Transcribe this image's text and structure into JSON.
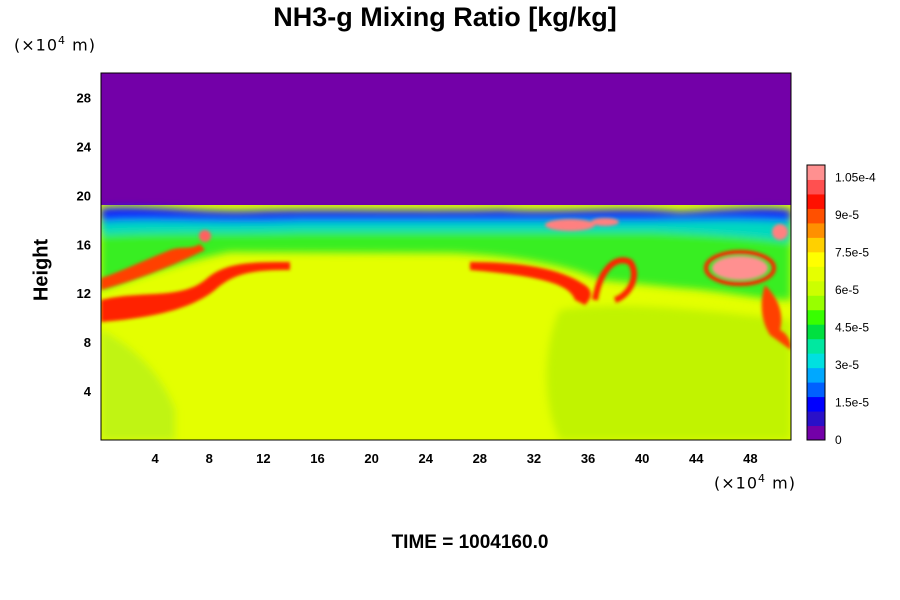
{
  "chart_data": {
    "type": "heatmap",
    "title": "NH3-g Mixing Ratio [kg/kg]",
    "ylabel": "Height",
    "x_unit": "(×10⁴ m)",
    "y_unit": "(×10⁴ m)",
    "x_unit_parts": {
      "pre": "(×10",
      "exp": "4",
      "post": " m)"
    },
    "y_unit_parts": {
      "pre": "(×10",
      "exp": "4",
      "post": " m)"
    },
    "xlim": [
      0,
      51
    ],
    "ylim": [
      0,
      30
    ],
    "x_ticks": [
      4,
      8,
      12,
      16,
      20,
      24,
      28,
      32,
      36,
      40,
      44,
      48
    ],
    "y_ticks": [
      4,
      8,
      12,
      16,
      20,
      24,
      28
    ],
    "colorbar": {
      "range": [
        0,
        0.00011
      ],
      "tick_values": [
        0,
        1.5e-05,
        3e-05,
        4.5e-05,
        6e-05,
        7.5e-05,
        9e-05,
        0.000105
      ],
      "tick_labels": [
        "0",
        "1.5e-5",
        "3e-5",
        "4.5e-5",
        "6e-5",
        "7.5e-5",
        "9e-5",
        "1.05e-4"
      ],
      "colors": [
        "#7300a8",
        "#2a10c8",
        "#0000ff",
        "#0060ff",
        "#00a8ff",
        "#00e0e0",
        "#00e8a0",
        "#00e040",
        "#38ff00",
        "#98ff00",
        "#ccff00",
        "#e6ff00",
        "#ffff00",
        "#ffd000",
        "#ff9000",
        "#ff5000",
        "#ff1000",
        "#ff5050",
        "#ff9090"
      ]
    },
    "field_summary": [
      {
        "region": "upper layer (y > ~19)",
        "value": 0
      },
      {
        "region": "interior (y < ~15)",
        "value": 8e-05
      },
      {
        "region": "band near y ~ 16-17",
        "value": 6e-05
      },
      {
        "region": "edge near y ~ 18",
        "value": 1.5e-05
      },
      {
        "region": "red filaments near y ~ 11-14",
        "value": 0.0001
      }
    ],
    "time_label": "TIME = 1004160.0"
  }
}
